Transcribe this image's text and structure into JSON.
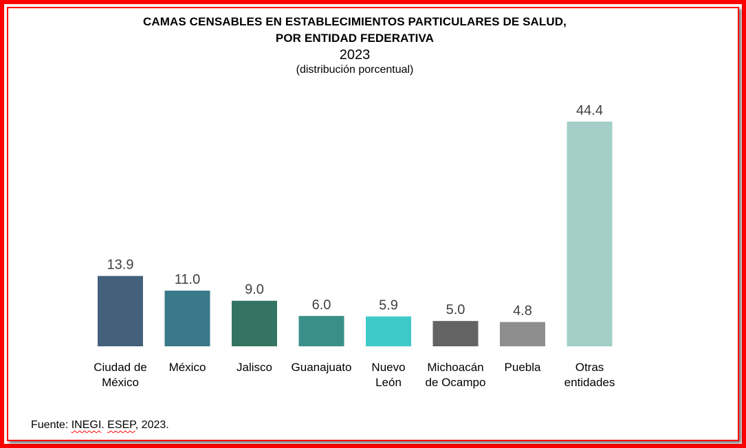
{
  "chart_data": {
    "type": "bar",
    "title_line1": "CAMAS CENSABLES EN ESTABLECIMIENTOS PARTICULARES DE SALUD,",
    "title_line2": "POR ENTIDAD FEDERATIVA",
    "year": "2023",
    "subtitle": "(distribución porcentual)",
    "categories": [
      [
        "Ciudad de",
        "México"
      ],
      [
        "México"
      ],
      [
        "Jalisco"
      ],
      [
        "Guanajuato"
      ],
      [
        "Nuevo",
        "León"
      ],
      [
        "Michoacán",
        "de Ocampo"
      ],
      [
        "Puebla"
      ],
      [
        "Otras",
        "entidades"
      ]
    ],
    "values": [
      13.9,
      11.0,
      9.0,
      6.0,
      5.9,
      5.0,
      4.8,
      44.4
    ],
    "value_labels": [
      "13.9",
      "11.0",
      "9.0",
      "6.0",
      "5.9",
      "5.0",
      "4.8",
      "44.4"
    ],
    "colors": [
      "#44617b",
      "#3a7989",
      "#357363",
      "#3a9089",
      "#3dcac9",
      "#636363",
      "#8e8e8e",
      "#a3cfc8"
    ],
    "ylim": [
      0,
      44.4
    ],
    "grid": false,
    "legend": "none"
  },
  "source": {
    "prefix": "Fuente: ",
    "org1": "INEGI",
    "sep": ". ",
    "org2": "ESEP",
    "suffix": ", 2023."
  }
}
